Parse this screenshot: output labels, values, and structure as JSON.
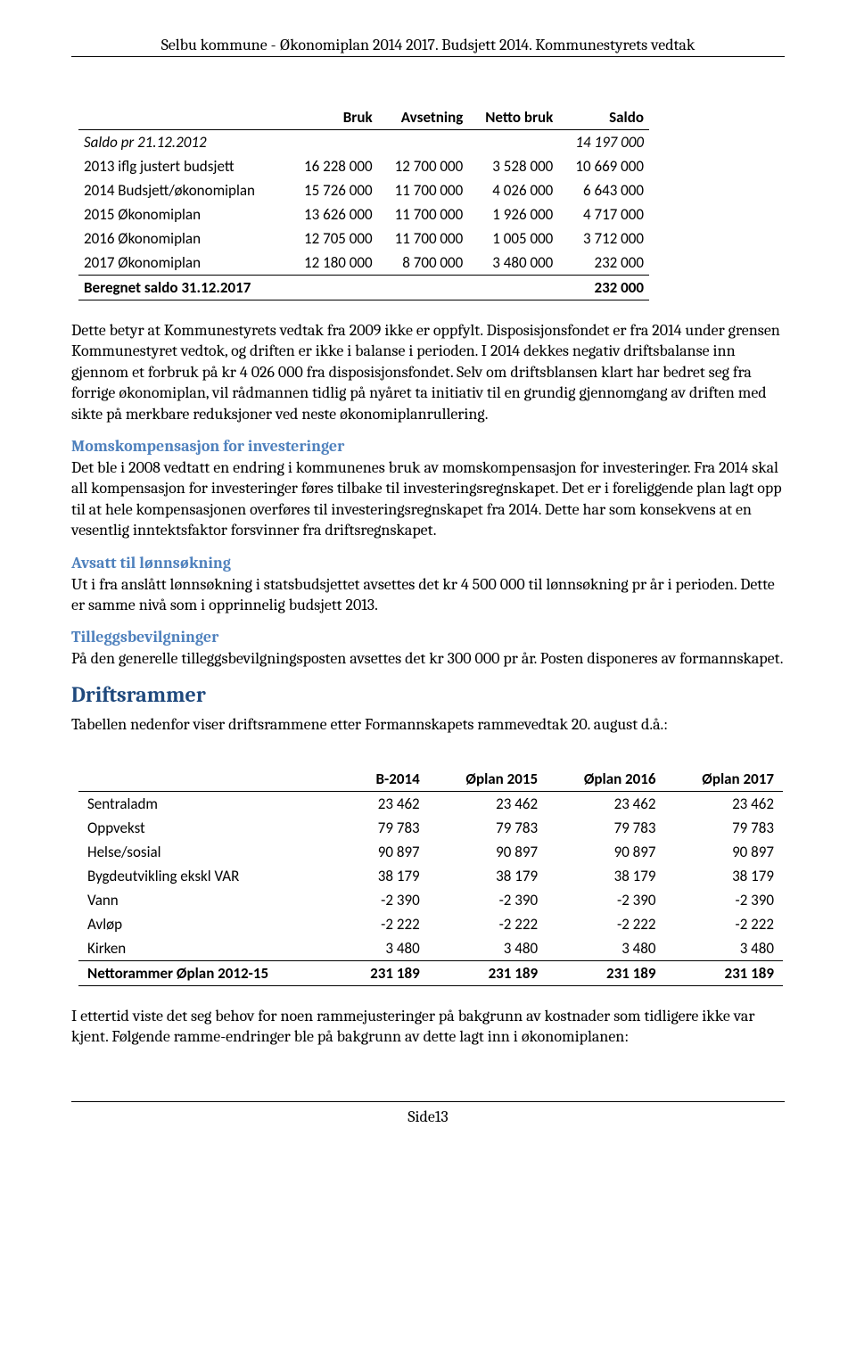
{
  "header": {
    "title": "Selbu kommune - Økonomiplan 2014 2017. Budsjett 2014. Kommunestyrets vedtak"
  },
  "table1": {
    "columns": [
      "",
      "Bruk",
      "Avsetning",
      "Netto bruk",
      "Saldo"
    ],
    "rows": [
      {
        "label": "Saldo pr 21.12.2012",
        "italic": true,
        "cells": [
          "",
          "",
          "",
          "14 197 000"
        ]
      },
      {
        "label": "2013 iflg justert budsjett",
        "cells": [
          "16 228 000",
          "12 700 000",
          "3 528 000",
          "10 669 000"
        ]
      },
      {
        "label": "2014 Budsjett/økonomiplan",
        "cells": [
          "15 726 000",
          "11 700 000",
          "4 026 000",
          "6 643 000"
        ]
      },
      {
        "label": "2015 Økonomiplan",
        "cells": [
          "13 626 000",
          "11 700 000",
          "1 926 000",
          "4 717 000"
        ]
      },
      {
        "label": "2016 Økonomiplan",
        "cells": [
          "12 705 000",
          "11 700 000",
          "1 005 000",
          "3 712 000"
        ]
      },
      {
        "label": "2017 Økonomiplan",
        "cells": [
          "12 180 000",
          "8 700 000",
          "3 480 000",
          "232 000"
        ]
      }
    ],
    "footer": {
      "label": "Beregnet saldo 31.12.2017",
      "value": "232 000"
    }
  },
  "para1": "Dette betyr at Kommunestyrets vedtak fra 2009 ikke er oppfylt. Disposisjonsfondet er fra 2014 under grensen Kommunestyret vedtok, og driften er ikke i balanse i perioden. I 2014 dekkes negativ driftsbalanse inn gjennom et forbruk på kr 4 026 000 fra disposisjonsfondet. Selv om driftsblansen klart har bedret seg fra forrige økonomiplan, vil rådmannen tidlig på nyåret ta initiativ til en grundig gjennomgang av driften med sikte på merkbare reduksjoner ved neste økonomiplanrullering.",
  "sub1": {
    "head": "Momskompensasjon for investeringer",
    "body": "Det ble i 2008 vedtatt en endring i kommunenes bruk av momskompensasjon for investeringer. Fra 2014 skal all kompensasjon for investeringer føres tilbake til investeringsregnskapet. Det er i foreliggende plan lagt opp til at hele kompensasjonen overføres til investeringsregnskapet fra 2014. Dette har som konsekvens at en vesentlig inntektsfaktor forsvinner fra driftsregnskapet."
  },
  "sub2": {
    "head": "Avsatt til lønnsøkning",
    "body": "Ut i fra anslått lønnsøkning i statsbudsjettet avsettes det  kr 4 500 000 til lønnsøkning pr år i perioden. Dette er samme nivå som i opprinnelig budsjett 2013."
  },
  "sub3": {
    "head": "Tilleggsbevilgninger",
    "body": "På den generelle tilleggsbevilgningsposten avsettes det kr 300 000 pr år. Posten disponeres av formannskapet."
  },
  "section": {
    "head": "Driftsrammer",
    "intro": "Tabellen nedenfor viser driftsrammene etter Formannskapets rammevedtak 20. august d.å.:"
  },
  "table2": {
    "columns": [
      "",
      "B-2014",
      "Øplan 2015",
      "Øplan 2016",
      "Øplan 2017"
    ],
    "rows": [
      {
        "label": "Sentraladm",
        "cells": [
          "23 462",
          "23 462",
          "23 462",
          "23 462"
        ]
      },
      {
        "label": "Oppvekst",
        "cells": [
          "79 783",
          "79 783",
          "79 783",
          "79 783"
        ]
      },
      {
        "label": "Helse/sosial",
        "cells": [
          "90 897",
          "90 897",
          "90 897",
          "90 897"
        ]
      },
      {
        "label": "Bygdeutvikling ekskl VAR",
        "cells": [
          "38 179",
          "38 179",
          "38 179",
          "38 179"
        ]
      },
      {
        "label": "Vann",
        "cells": [
          "-2 390",
          "-2 390",
          "-2 390",
          "-2 390"
        ]
      },
      {
        "label": "Avløp",
        "cells": [
          "-2 222",
          "-2 222",
          "-2 222",
          "-2 222"
        ]
      },
      {
        "label": "Kirken",
        "cells": [
          "3 480",
          "3 480",
          "3 480",
          "3 480"
        ]
      }
    ],
    "footer": {
      "label": "Nettorammer Øplan 2012-15",
      "cells": [
        "231 189",
        "231 189",
        "231 189",
        "231 189"
      ]
    }
  },
  "para2": "I ettertid viste det seg behov for noen rammejusteringer på bakgrunn av kostnader som tidligere ikke var kjent. Følgende ramme-endringer ble på bakgrunn av dette lagt inn i økonomiplanen:",
  "footer": {
    "page": "Side13"
  }
}
